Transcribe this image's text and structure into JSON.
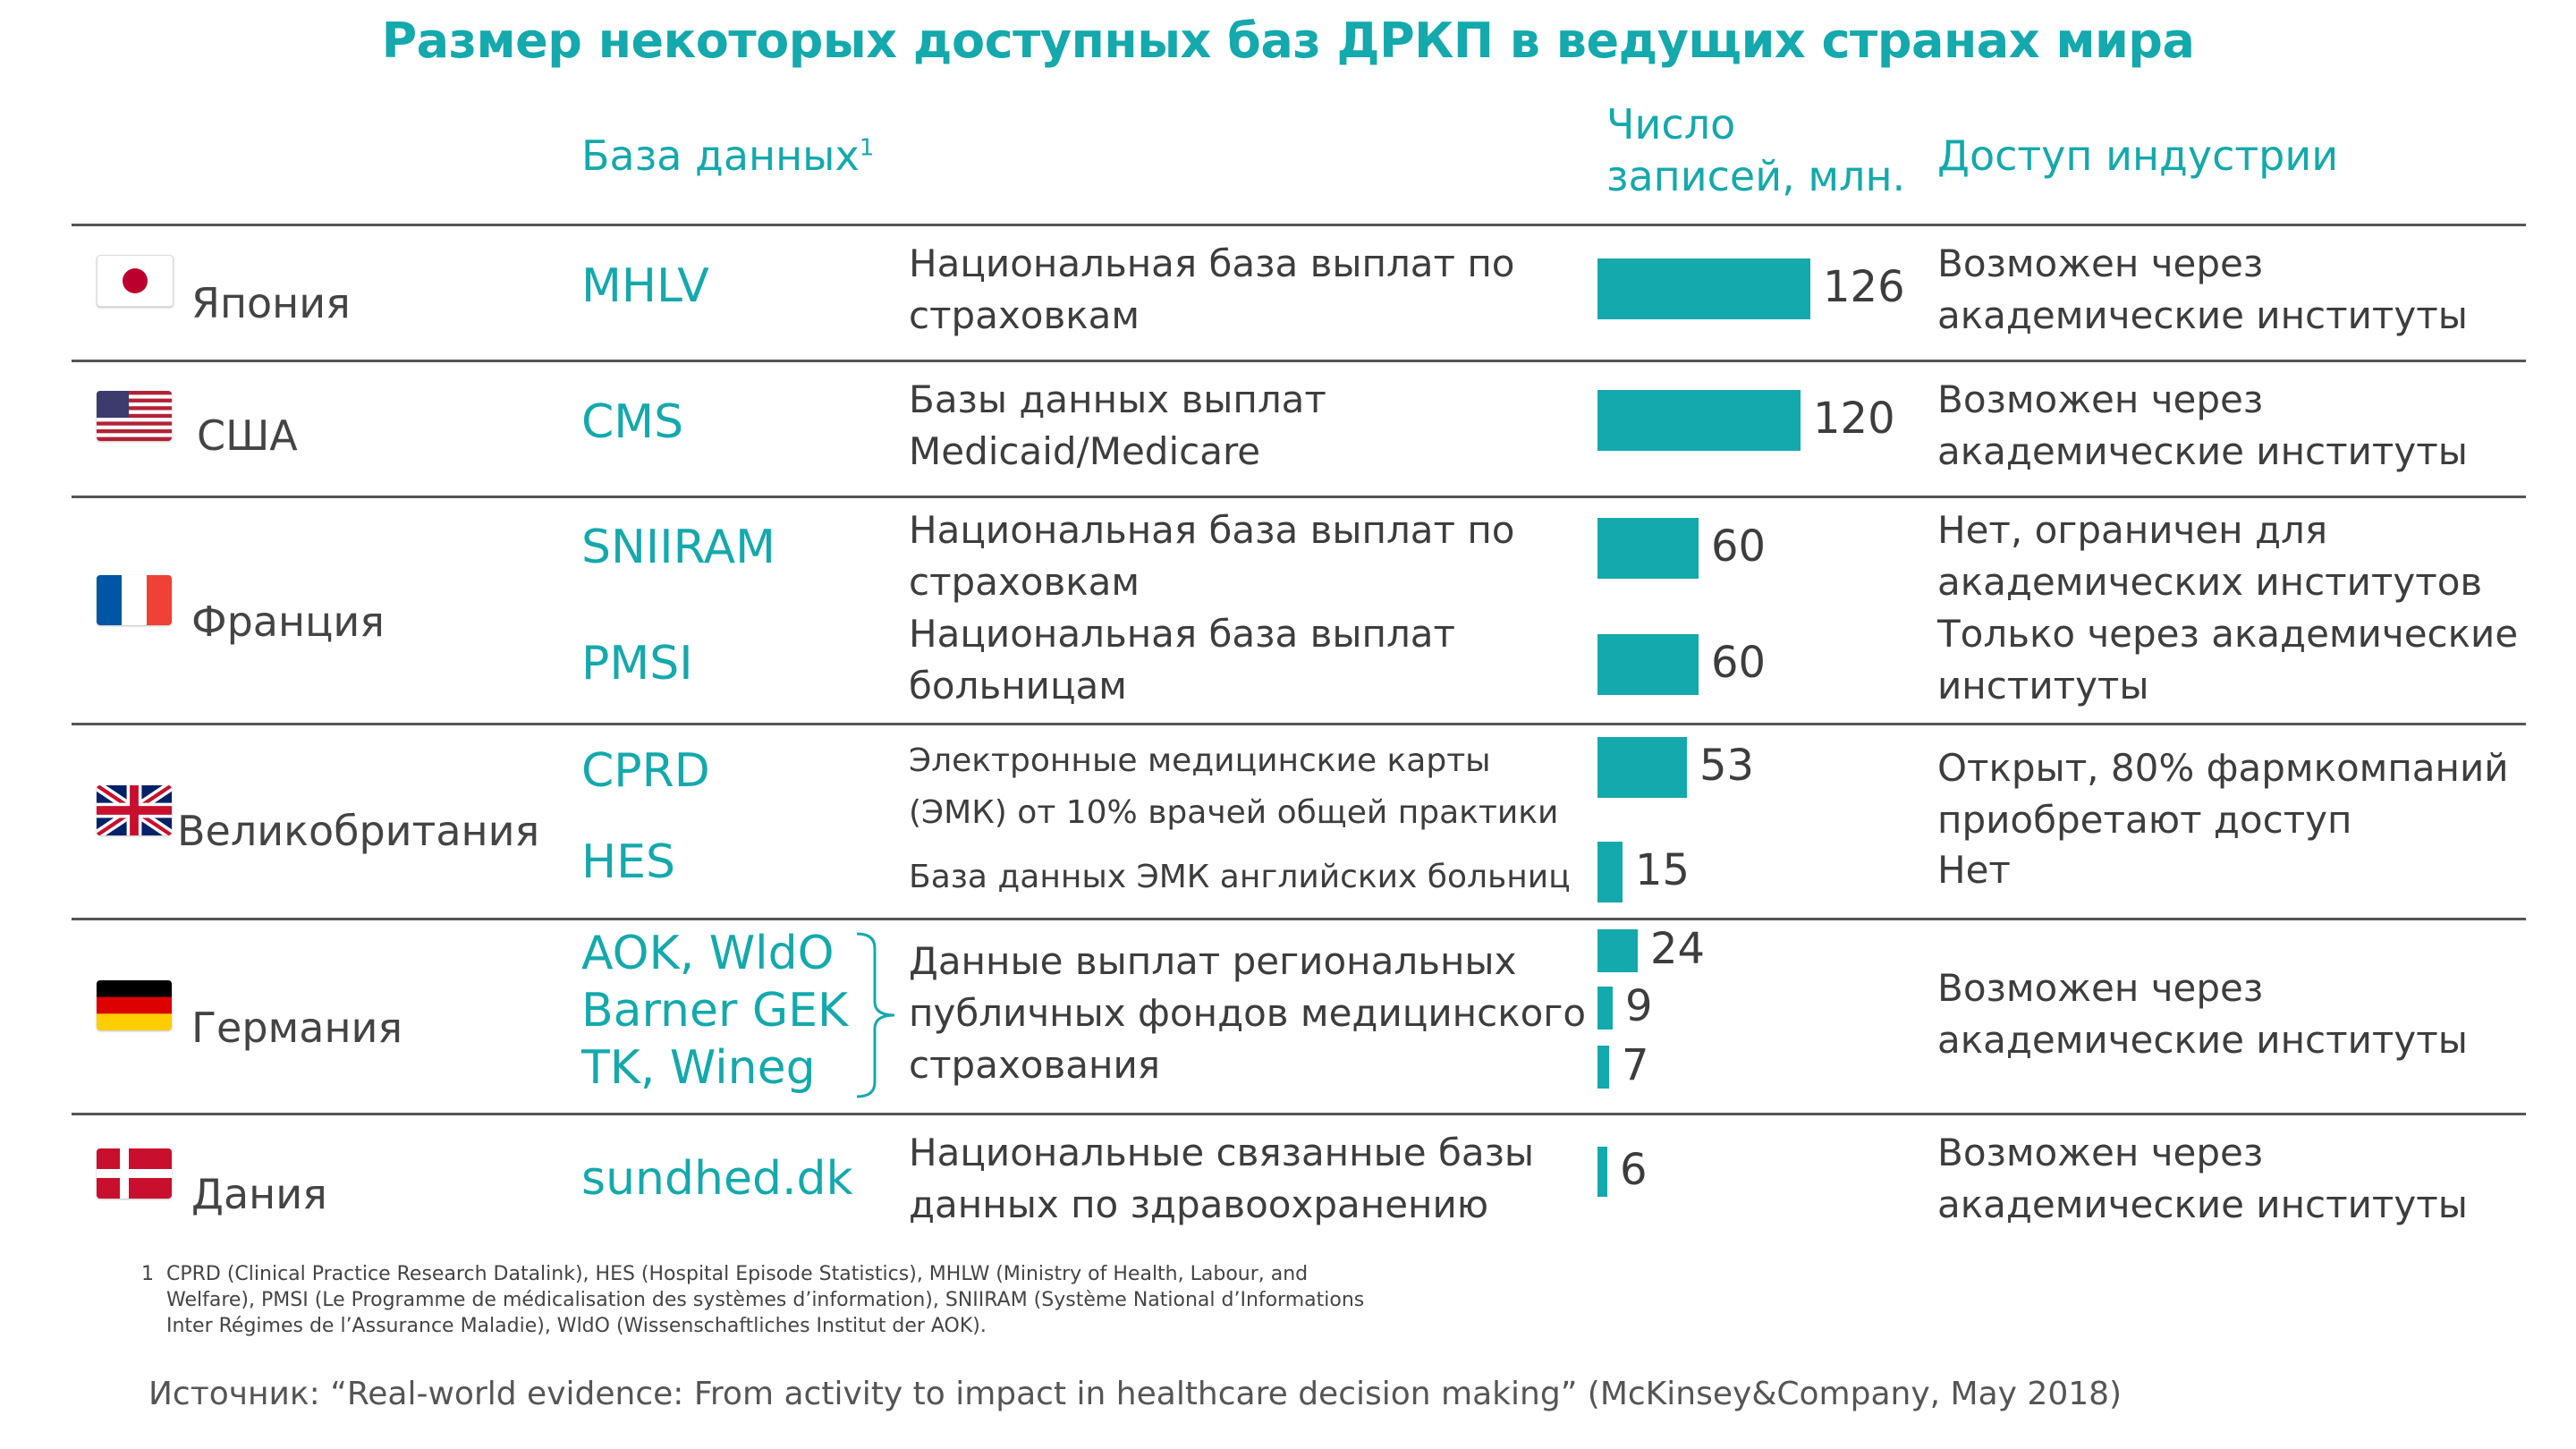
{
  "title": "Размер некоторых доступных баз ДРКП в ведущих странах мира",
  "headers": {
    "database": "База данных",
    "database_sup": "1",
    "records_line1": "Число",
    "records_line2": "записей, млн.",
    "access": "Доступ индустрии"
  },
  "colors": {
    "accent": "#14a9ac",
    "text": "#3d3d3d",
    "rule": "#555555"
  },
  "rows": [
    {
      "country": "Япония",
      "flag": "japan-flag",
      "entries": [
        {
          "db": "MHLV",
          "desc": [
            "Национальная база выплат по",
            "страховкам"
          ],
          "value": 126,
          "access": [
            "Возможен через",
            "академические институты"
          ]
        }
      ]
    },
    {
      "country": "США",
      "flag": "usa-flag",
      "entries": [
        {
          "db": "CMS",
          "desc": [
            "Базы данных выплат",
            "Medicaid/Medicare"
          ],
          "value": 120,
          "access": [
            "Возможен через",
            "академические институты"
          ]
        }
      ]
    },
    {
      "country": "Франция",
      "flag": "france-flag",
      "entries": [
        {
          "db": "SNIIRAM",
          "desc": [
            "Национальная база выплат по",
            "страховкам"
          ],
          "value": 60,
          "access": [
            "Нет, ограничен для",
            "академических институтов"
          ]
        },
        {
          "db": "PMSI",
          "desc": [
            "Национальная база выплат",
            "больницам"
          ],
          "value": 60,
          "access": [
            "Только через академические",
            "институты"
          ]
        }
      ]
    },
    {
      "country": "Великобритания",
      "flag": "uk-flag",
      "entries": [
        {
          "db": "CPRD",
          "desc": [
            "Электронные медицинские карты",
            "(ЭМК) от 10% врачей общей практики"
          ],
          "value": 53,
          "access": [
            "Открыт, 80% фармкомпаний",
            "приобретают доступ"
          ]
        },
        {
          "db": "HES",
          "desc": [
            "База данных ЭМК английских больниц"
          ],
          "value": 15,
          "access": [
            "Нет"
          ]
        }
      ]
    },
    {
      "country": "Германия",
      "flag": "germany-flag",
      "dbs": [
        "AOK, WldO",
        "Barner GEK",
        "TK, Wineg"
      ],
      "desc": [
        "Данные выплат региональных",
        "публичных фондов медицинского",
        "страхования"
      ],
      "values": [
        24,
        9,
        7
      ],
      "access": [
        "Возможен через",
        "академические институты"
      ]
    },
    {
      "country": "Дания",
      "flag": "denmark-flag",
      "entries": [
        {
          "db": "sundhed.dk",
          "desc": [
            "Национальные связанные базы",
            "данных по здравоохранению"
          ],
          "value": 6,
          "access": [
            "Возможен через",
            "академические институты"
          ]
        }
      ]
    }
  ],
  "footnote": {
    "marker": "1",
    "lines": [
      "CPRD (Clinical Practice Research Datalink), HES (Hospital Episode Statistics), MHLW (Ministry of Health, Labour, and",
      "Welfare), PMSI (Le Programme de médicalisation des systèmes d’information), SNIIRAM (Système National d’Informations",
      "Inter Régimes de l’Assurance Maladie), WldO (Wissenschaftliches Institut der AOK)."
    ]
  },
  "source": "Источник: “Real-world evidence: From activity to impact in healthcare decision making” (McKinsey&Company, May 2018)",
  "chart_data": {
    "type": "bar",
    "orientation": "horizontal",
    "categories": [
      "MHLV",
      "CMS",
      "SNIIRAM",
      "PMSI",
      "CPRD",
      "HES",
      "AOK, WldO",
      "Barner GEK",
      "TK, Wineg",
      "sundhed.dk"
    ],
    "values": [
      126,
      120,
      60,
      60,
      53,
      15,
      24,
      9,
      7,
      6
    ],
    "title": "Размер некоторых доступных баз ДРКП в ведущих странах мира",
    "ylabel": "Число записей, млн.",
    "xlim": [
      0,
      126
    ]
  }
}
